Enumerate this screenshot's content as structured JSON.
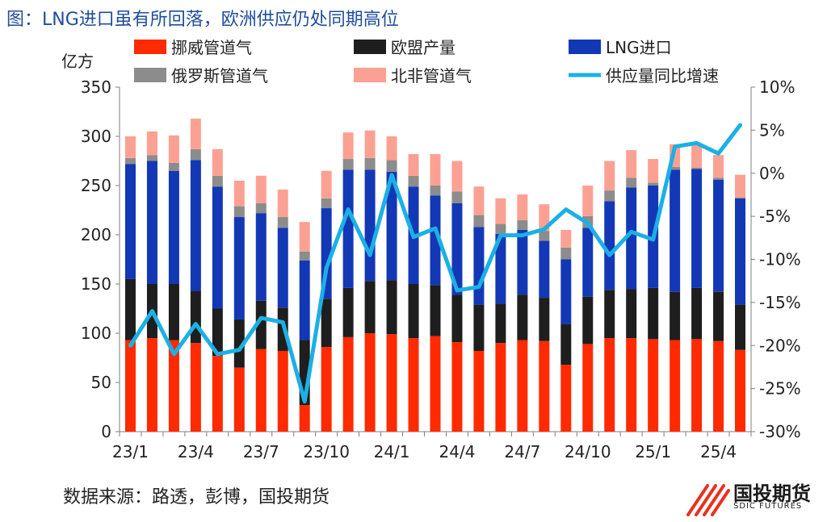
{
  "title": "图：LNG进口虽有所回落，欧洲供应仍处同期高位",
  "source": "数据来源：路透，彭博，国投期货",
  "logo": {
    "name": "国投期货",
    "sub": "SDIC FUTURES",
    "icon": "sdic-logo-icon"
  },
  "chart_data": {
    "type": "bar",
    "stacked": true,
    "ylabel": "亿方",
    "ylim": [
      0,
      350
    ],
    "yticks": [
      0,
      50,
      100,
      150,
      200,
      250,
      300,
      350
    ],
    "y2lim": [
      -30,
      10
    ],
    "y2ticks": [
      "-30%",
      "-25%",
      "-20%",
      "-15%",
      "-10%",
      "-5%",
      "0%",
      "5%",
      "10%"
    ],
    "xticklabels": [
      "23/1",
      "23/4",
      "23/7",
      "23/10",
      "24/1",
      "24/4",
      "24/7",
      "24/10",
      "25/1",
      "25/4"
    ],
    "categories": [
      "23/1",
      "23/2",
      "23/3",
      "23/4",
      "23/5",
      "23/6",
      "23/7",
      "23/8",
      "23/9",
      "23/10",
      "23/11",
      "23/12",
      "24/1",
      "24/2",
      "24/3",
      "24/4",
      "24/5",
      "24/6",
      "24/7",
      "24/8",
      "24/9",
      "24/10",
      "24/11",
      "24/12",
      "25/1",
      "25/2",
      "25/3",
      "25/4",
      "25/5"
    ],
    "legend_placement": "top",
    "series": [
      {
        "name": "挪威管道气",
        "color": "#ff2a00",
        "values": [
          93,
          95,
          93,
          90,
          77,
          65,
          84,
          82,
          27,
          86,
          96,
          100,
          99,
          95,
          97,
          91,
          82,
          90,
          93,
          92,
          68,
          89,
          95,
          95,
          94,
          93,
          94,
          92,
          83
        ]
      },
      {
        "name": "欧盟产量",
        "color": "#1e1e1e",
        "values": [
          62,
          55,
          57,
          53,
          48,
          49,
          49,
          44,
          66,
          49,
          50,
          53,
          55,
          55,
          52,
          48,
          47,
          40,
          46,
          44,
          41,
          48,
          49,
          50,
          52,
          49,
          52,
          50,
          46
        ]
      },
      {
        "name": "LNG进口",
        "color": "#1338b5",
        "values": [
          117,
          125,
          115,
          133,
          124,
          104,
          89,
          81,
          81,
          92,
          120,
          113,
          110,
          99,
          91,
          93,
          79,
          71,
          66,
          58,
          66,
          70,
          90,
          103,
          104,
          124,
          121,
          114,
          108
        ]
      },
      {
        "name": "俄罗斯管道气",
        "color": "#8c8c8c",
        "values": [
          6,
          6,
          8,
          11,
          11,
          11,
          10,
          11,
          9,
          10,
          11,
          12,
          12,
          11,
          10,
          12,
          12,
          10,
          10,
          10,
          12,
          12,
          11,
          10,
          3,
          3,
          1,
          2,
          1
        ]
      },
      {
        "name": "北非管道气",
        "color": "#fba193",
        "values": [
          22,
          24,
          28,
          31,
          27,
          26,
          28,
          28,
          30,
          28,
          27,
          28,
          24,
          22,
          32,
          31,
          29,
          26,
          26,
          27,
          18,
          31,
          30,
          28,
          24,
          23,
          24,
          23,
          23
        ]
      }
    ],
    "line_series": {
      "name": "供应量同比增速",
      "color": "#1bb0e6",
      "axis": "right",
      "unit": "%",
      "values": [
        -20,
        -16,
        -21,
        -17.5,
        -21,
        -20.5,
        -16.8,
        -17.3,
        -26.5,
        -11,
        -4.2,
        -9.5,
        -0.2,
        -7.4,
        -6.4,
        -13.6,
        -13.2,
        -7.2,
        -7.2,
        -6.5,
        -4.2,
        -5.8,
        -9.5,
        -6.8,
        -7.7,
        3.1,
        3.5,
        2.3,
        5.6
      ]
    }
  }
}
